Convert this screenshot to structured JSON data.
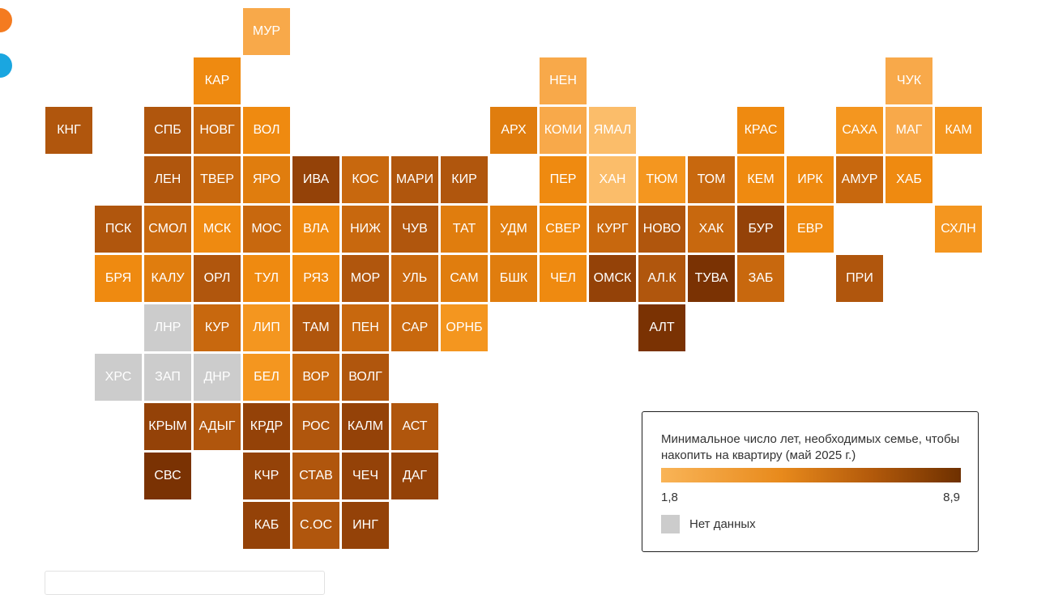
{
  "colors": {
    "no_data": "#cccccc",
    "scale_min": "#f9b457",
    "scale_max": "#6e3000",
    "edge_circle_orange": "#f47b20",
    "edge_circle_blue": "#1aa6e0"
  },
  "map": {
    "value_min": 1.8,
    "value_max": 8.9,
    "regions": [
      {
        "label": "МУР",
        "level": 1,
        "col": 4,
        "row": 0
      },
      {
        "label": "КАР",
        "level": 3,
        "col": 3,
        "row": 1
      },
      {
        "label": "НЕН",
        "level": 1,
        "col": 10,
        "row": 1
      },
      {
        "label": "ЧУК",
        "level": 1,
        "col": 17,
        "row": 1
      },
      {
        "label": "КНГ",
        "level": 6,
        "col": 0,
        "row": 2
      },
      {
        "label": "СПБ",
        "level": 6,
        "col": 2,
        "row": 2
      },
      {
        "label": "НОВГ",
        "level": 5,
        "col": 3,
        "row": 2
      },
      {
        "label": "ВОЛ",
        "level": 3,
        "col": 4,
        "row": 2
      },
      {
        "label": "АРХ",
        "level": 4,
        "col": 9,
        "row": 2
      },
      {
        "label": "КОМИ",
        "level": 1,
        "col": 10,
        "row": 2
      },
      {
        "label": "ЯМАЛ",
        "level": 0,
        "col": 11,
        "row": 2
      },
      {
        "label": "КРАС",
        "level": 3,
        "col": 14,
        "row": 2
      },
      {
        "label": "САХА",
        "level": 2,
        "col": 16,
        "row": 2
      },
      {
        "label": "МАГ",
        "level": 1,
        "col": 17,
        "row": 2
      },
      {
        "label": "КАМ",
        "level": 2,
        "col": 18,
        "row": 2
      },
      {
        "label": "ЛЕН",
        "level": 6,
        "col": 2,
        "row": 3
      },
      {
        "label": "ТВЕР",
        "level": 5,
        "col": 3,
        "row": 3
      },
      {
        "label": "ЯРО",
        "level": 4,
        "col": 4,
        "row": 3
      },
      {
        "label": "ИВА",
        "level": 7,
        "col": 5,
        "row": 3
      },
      {
        "label": "КОС",
        "level": 5,
        "col": 6,
        "row": 3
      },
      {
        "label": "МАРИ",
        "level": 6,
        "col": 7,
        "row": 3
      },
      {
        "label": "КИР",
        "level": 6,
        "col": 8,
        "row": 3
      },
      {
        "label": "ПЕР",
        "level": 3,
        "col": 10,
        "row": 3
      },
      {
        "label": "ХАН",
        "level": 0,
        "col": 11,
        "row": 3
      },
      {
        "label": "ТЮМ",
        "level": 2,
        "col": 12,
        "row": 3
      },
      {
        "label": "ТОМ",
        "level": 5,
        "col": 13,
        "row": 3
      },
      {
        "label": "КЕМ",
        "level": 3,
        "col": 14,
        "row": 3
      },
      {
        "label": "ИРК",
        "level": 3,
        "col": 15,
        "row": 3
      },
      {
        "label": "АМУР",
        "level": 5,
        "col": 16,
        "row": 3
      },
      {
        "label": "ХАБ",
        "level": 3,
        "col": 17,
        "row": 3
      },
      {
        "label": "ПСК",
        "level": 6,
        "col": 1,
        "row": 4
      },
      {
        "label": "СМОЛ",
        "level": 5,
        "col": 2,
        "row": 4
      },
      {
        "label": "МСК",
        "level": 3,
        "col": 3,
        "row": 4
      },
      {
        "label": "МОС",
        "level": 5,
        "col": 4,
        "row": 4
      },
      {
        "label": "ВЛА",
        "level": 3,
        "col": 5,
        "row": 4
      },
      {
        "label": "НИЖ",
        "level": 5,
        "col": 6,
        "row": 4
      },
      {
        "label": "ЧУВ",
        "level": 6,
        "col": 7,
        "row": 4
      },
      {
        "label": "ТАТ",
        "level": 4,
        "col": 8,
        "row": 4
      },
      {
        "label": "УДМ",
        "level": 4,
        "col": 9,
        "row": 4
      },
      {
        "label": "СВЕР",
        "level": 3,
        "col": 10,
        "row": 4
      },
      {
        "label": "КУРГ",
        "level": 5,
        "col": 11,
        "row": 4
      },
      {
        "label": "НОВО",
        "level": 6,
        "col": 12,
        "row": 4
      },
      {
        "label": "ХАК",
        "level": 5,
        "col": 13,
        "row": 4
      },
      {
        "label": "БУР",
        "level": 7,
        "col": 14,
        "row": 4
      },
      {
        "label": "ЕВР",
        "level": 3,
        "col": 15,
        "row": 4
      },
      {
        "label": "СХЛН",
        "level": 2,
        "col": 18,
        "row": 4
      },
      {
        "label": "БРЯ",
        "level": 3,
        "col": 1,
        "row": 5
      },
      {
        "label": "КАЛУ",
        "level": 4,
        "col": 2,
        "row": 5
      },
      {
        "label": "ОРЛ",
        "level": 6,
        "col": 3,
        "row": 5
      },
      {
        "label": "ТУЛ",
        "level": 3,
        "col": 4,
        "row": 5
      },
      {
        "label": "РЯЗ",
        "level": 3,
        "col": 5,
        "row": 5
      },
      {
        "label": "МОР",
        "level": 6,
        "col": 6,
        "row": 5
      },
      {
        "label": "УЛЬ",
        "level": 5,
        "col": 7,
        "row": 5
      },
      {
        "label": "САМ",
        "level": 4,
        "col": 8,
        "row": 5
      },
      {
        "label": "БШК",
        "level": 4,
        "col": 9,
        "row": 5
      },
      {
        "label": "ЧЕЛ",
        "level": 3,
        "col": 10,
        "row": 5
      },
      {
        "label": "ОМСК",
        "level": 7,
        "col": 11,
        "row": 5
      },
      {
        "label": "АЛ.К",
        "level": 6,
        "col": 12,
        "row": 5
      },
      {
        "label": "ТУВА",
        "level": 8,
        "col": 13,
        "row": 5
      },
      {
        "label": "ЗАБ",
        "level": 5,
        "col": 14,
        "row": 5
      },
      {
        "label": "ПРИ",
        "level": 6,
        "col": 16,
        "row": 5
      },
      {
        "label": "ЛНР",
        "level": -1,
        "col": 2,
        "row": 6
      },
      {
        "label": "КУР",
        "level": 5,
        "col": 3,
        "row": 6
      },
      {
        "label": "ЛИП",
        "level": 2,
        "col": 4,
        "row": 6
      },
      {
        "label": "ТАМ",
        "level": 6,
        "col": 5,
        "row": 6
      },
      {
        "label": "ПЕН",
        "level": 5,
        "col": 6,
        "row": 6
      },
      {
        "label": "САР",
        "level": 5,
        "col": 7,
        "row": 6
      },
      {
        "label": "ОРНБ",
        "level": 2,
        "col": 8,
        "row": 6
      },
      {
        "label": "АЛТ",
        "level": 8,
        "col": 12,
        "row": 6
      },
      {
        "label": "ХРС",
        "level": -1,
        "col": 1,
        "row": 7
      },
      {
        "label": "ЗАП",
        "level": -1,
        "col": 2,
        "row": 7
      },
      {
        "label": "ДНР",
        "level": -1,
        "col": 3,
        "row": 7
      },
      {
        "label": "БЕЛ",
        "level": 2,
        "col": 4,
        "row": 7
      },
      {
        "label": "ВОР",
        "level": 5,
        "col": 5,
        "row": 7
      },
      {
        "label": "ВОЛГ",
        "level": 6,
        "col": 6,
        "row": 7
      },
      {
        "label": "КРЫМ",
        "level": 7,
        "col": 2,
        "row": 8
      },
      {
        "label": "АДЫГ",
        "level": 6,
        "col": 3,
        "row": 8
      },
      {
        "label": "КРДР",
        "level": 7,
        "col": 4,
        "row": 8
      },
      {
        "label": "РОС",
        "level": 6,
        "col": 5,
        "row": 8
      },
      {
        "label": "КАЛМ",
        "level": 7,
        "col": 6,
        "row": 8
      },
      {
        "label": "АСТ",
        "level": 6,
        "col": 7,
        "row": 8
      },
      {
        "label": "СВС",
        "level": 8,
        "col": 2,
        "row": 9
      },
      {
        "label": "КЧР",
        "level": 7,
        "col": 4,
        "row": 9
      },
      {
        "label": "СТАВ",
        "level": 6,
        "col": 5,
        "row": 9
      },
      {
        "label": "ЧЕЧ",
        "level": 7,
        "col": 6,
        "row": 9
      },
      {
        "label": "ДАГ",
        "level": 7,
        "col": 7,
        "row": 9
      },
      {
        "label": "КАБ",
        "level": 7,
        "col": 4,
        "row": 10
      },
      {
        "label": "С.ОС",
        "level": 6,
        "col": 5,
        "row": 10
      },
      {
        "label": "ИНГ",
        "level": 7,
        "col": 6,
        "row": 10
      }
    ]
  },
  "palette": [
    "#fbbd6a",
    "#f8a94a",
    "#f4961f",
    "#ef8a10",
    "#e07d0e",
    "#c8680e",
    "#b0560d",
    "#944208",
    "#7a3203"
  ],
  "legend": {
    "title": "Минимальное число лет, необходимых семье, чтобы накопить на квартиру (май 2025 г.)",
    "min_label": "1,8",
    "max_label": "8,9",
    "no_data_label": "Нет данных"
  }
}
